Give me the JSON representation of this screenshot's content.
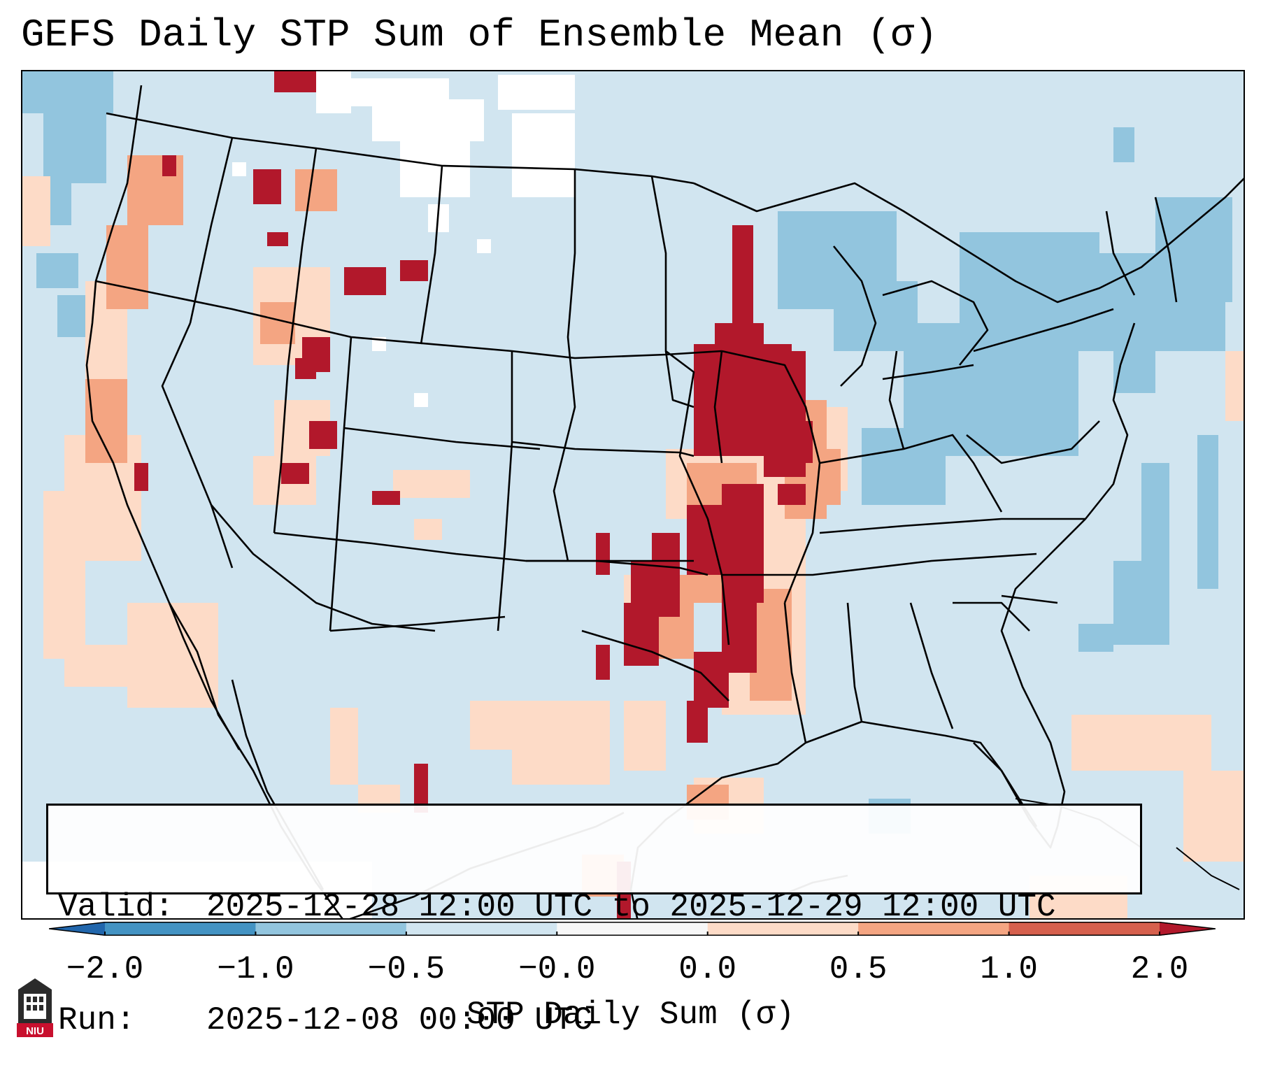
{
  "title": "GEFS Daily STP Sum of Ensemble Mean (σ)",
  "info": {
    "valid_label": "Valid:",
    "valid_value": "2025-12-28 12:00 UTC to 2025-12-29 12:00 UTC",
    "run_label": "Run:",
    "run_value": "2025-12-08 00:00 UTC"
  },
  "colorbar": {
    "title": "STP Daily Sum (σ)",
    "ticks": [
      "−2.0",
      "−1.0",
      "−0.5",
      "−0.0",
      "0.0",
      "0.5",
      "1.0",
      "2.0"
    ],
    "colors": [
      "#4393c3",
      "#92c5de",
      "#d1e5f0",
      "#f7f7f7",
      "#fddbc7",
      "#f4a582",
      "#d6604d",
      "#b2182b"
    ],
    "under_color": "#2166ac",
    "over_color": "#b2182b"
  },
  "map": {
    "background": "#d1e5f0",
    "regions": {
      "plains_max": "Iowa to Oklahoma/Arkansas corridor",
      "west_coast": "Pacific coast",
      "northeast_negative": "Great Lakes and Northeast"
    }
  },
  "logo": {
    "text": "NIU"
  }
}
